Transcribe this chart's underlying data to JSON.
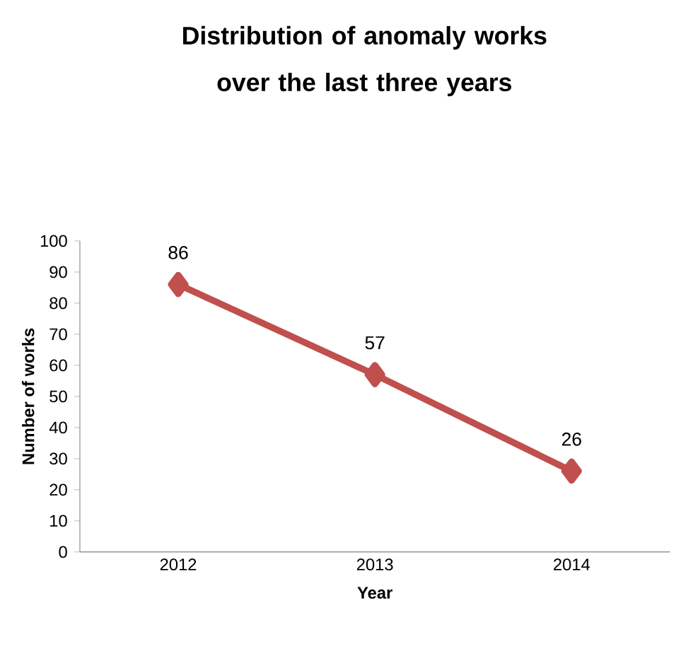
{
  "chart_data": {
    "type": "line",
    "title": "Distribution of anomaly works over the last three years",
    "xlabel": "Year",
    "ylabel": "Number of works",
    "categories": [
      "2012",
      "2013",
      "2014"
    ],
    "series": [
      {
        "color": "#c0504d",
        "values": [
          86,
          57,
          26
        ]
      }
    ],
    "ylim": [
      0,
      100
    ],
    "yticks": [
      0,
      10,
      20,
      30,
      40,
      50,
      60,
      70,
      80,
      90,
      100
    ],
    "data_labels": true,
    "marker": "diamond",
    "line_style": "solid"
  }
}
